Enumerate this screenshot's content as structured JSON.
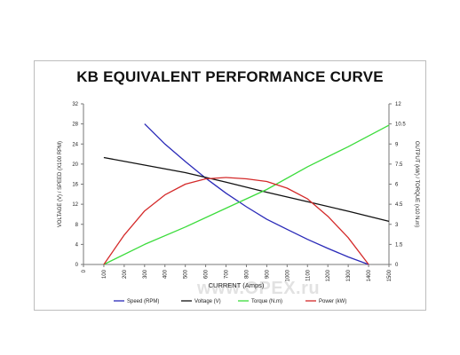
{
  "chart_data": {
    "type": "line",
    "title": "KB EQUIVALENT PERFORMANCE CURVE",
    "xlabel": "CURRENT (Amps)",
    "ylabel": "VOLTAGE (V) / SPEED (X100 RPM)",
    "y2label": "OUTPUT (kW) / TORQUE (x10 N.m)",
    "xlim": [
      0,
      1500
    ],
    "ylim": [
      0,
      32
    ],
    "y2lim": [
      0,
      12
    ],
    "xticks": [
      "0",
      "100",
      "200",
      "300",
      "400",
      "500",
      "600",
      "700",
      "800",
      "900",
      "1000",
      "1100",
      "1200",
      "1300",
      "1400",
      "1500"
    ],
    "yticks": [
      "0",
      "4",
      "8",
      "12",
      "16",
      "20",
      "24",
      "28",
      "32"
    ],
    "y2ticks": [
      "0",
      "1.5",
      "3",
      "4.5",
      "6",
      "7.5",
      "9",
      "10.5",
      "12"
    ],
    "grid": false,
    "legend_position": "bottom",
    "series": [
      {
        "name": "Speed (RPM)",
        "axis": "left",
        "color": "#2a2ab8",
        "x": [
          300,
          400,
          500,
          600,
          700,
          800,
          900,
          1000,
          1100,
          1200,
          1300,
          1400
        ],
        "y": [
          28.0,
          24.0,
          20.5,
          17.2,
          14.2,
          11.5,
          9.0,
          7.0,
          5.0,
          3.2,
          1.5,
          0.0
        ]
      },
      {
        "name": "Voltage (V)",
        "axis": "left",
        "color": "#111111",
        "x": [
          100,
          300,
          500,
          700,
          900,
          1100,
          1300,
          1500
        ],
        "y": [
          21.3,
          19.8,
          18.3,
          16.4,
          14.4,
          12.5,
          10.6,
          8.6
        ]
      },
      {
        "name": "Torque (N.m)",
        "axis": "right",
        "color": "#3cdc3c",
        "x": [
          100,
          300,
          500,
          700,
          900,
          1100,
          1300,
          1500
        ],
        "y": [
          0.0,
          1.5,
          2.8,
          4.2,
          5.6,
          7.3,
          8.8,
          10.4
        ]
      },
      {
        "name": "Power (kW)",
        "axis": "right",
        "color": "#d42a2a",
        "x": [
          100,
          200,
          300,
          400,
          500,
          600,
          700,
          800,
          900,
          1000,
          1100,
          1200,
          1300,
          1400
        ],
        "y": [
          0.0,
          2.2,
          4.0,
          5.2,
          6.0,
          6.4,
          6.5,
          6.4,
          6.2,
          5.7,
          4.9,
          3.6,
          2.0,
          0.0
        ]
      }
    ]
  },
  "watermark": "www.OPEX.ru"
}
